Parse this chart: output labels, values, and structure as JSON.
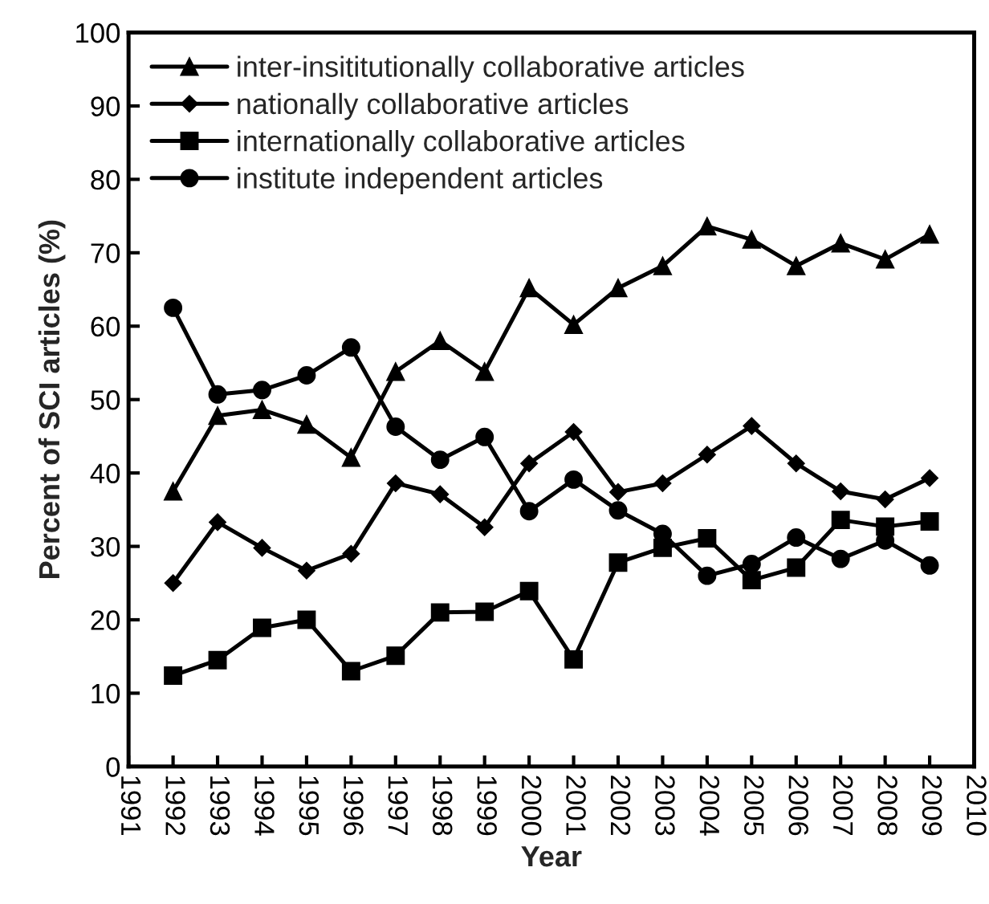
{
  "chart_data": {
    "type": "line",
    "xlabel": "Year",
    "ylabel": "Percent of SCI articles (%)",
    "x": [
      1992,
      1993,
      1994,
      1995,
      1996,
      1997,
      1998,
      1999,
      2000,
      2001,
      2002,
      2003,
      2004,
      2005,
      2006,
      2007,
      2008,
      2009
    ],
    "series": [
      {
        "name": "inter-insititutionally collaborative articles",
        "color": "#000000",
        "marker": "triangle",
        "values": [
          37.5,
          47.8,
          48.6,
          46.6,
          42.1,
          53.8,
          58.0,
          53.8,
          65.2,
          60.2,
          65.2,
          68.2,
          73.6,
          71.8,
          68.2,
          71.3,
          69.1,
          72.5
        ]
      },
      {
        "name": "nationally collaborative articles",
        "color": "#000000",
        "marker": "diamond",
        "values": [
          25.0,
          33.3,
          29.8,
          26.7,
          29.0,
          38.6,
          37.1,
          32.6,
          41.3,
          45.6,
          37.4,
          38.6,
          42.5,
          46.4,
          41.3,
          37.5,
          36.4,
          39.3
        ]
      },
      {
        "name": "internationally collaborative articles",
        "color": "#000000",
        "marker": "square",
        "values": [
          12.4,
          14.5,
          18.9,
          20.0,
          13.0,
          15.1,
          21.0,
          21.1,
          23.9,
          14.6,
          27.8,
          29.8,
          31.1,
          25.4,
          27.1,
          33.6,
          32.7,
          33.4
        ]
      },
      {
        "name": "institute independent articles",
        "color": "#000000",
        "marker": "circle",
        "values": [
          62.5,
          50.7,
          51.3,
          53.3,
          57.1,
          46.3,
          41.8,
          44.9,
          34.8,
          39.1,
          34.9,
          31.7,
          26.0,
          27.6,
          31.2,
          28.3,
          30.8,
          27.4
        ]
      }
    ],
    "xlim": [
      1991,
      2010
    ],
    "xticks": [
      1991,
      1992,
      1993,
      1994,
      1995,
      1996,
      1997,
      1998,
      1999,
      2000,
      2001,
      2002,
      2003,
      2004,
      2005,
      2006,
      2007,
      2008,
      2009,
      2010
    ],
    "ylim": [
      0,
      100
    ],
    "yticks": [
      0,
      10,
      20,
      30,
      40,
      50,
      60,
      70,
      80,
      90,
      100
    ],
    "grid": false,
    "legend": "top left",
    "line_style": "solid"
  }
}
